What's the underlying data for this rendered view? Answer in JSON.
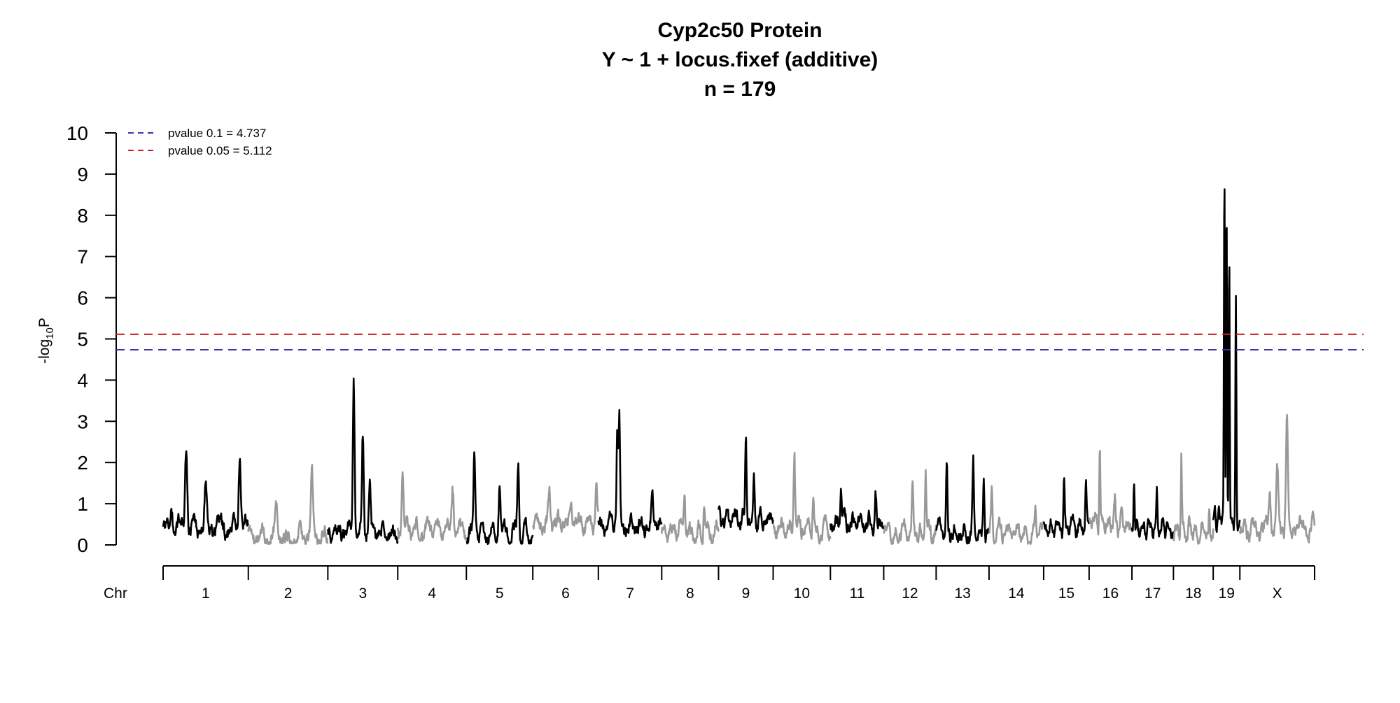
{
  "chart_data": {
    "type": "line",
    "title_lines": [
      "Cyp2c50 Protein",
      "Y ~ 1 + locus.fixef (additive)",
      "n = 179"
    ],
    "ylabel_base": "-log",
    "ylabel_sub": "10",
    "ylabel_tail": "P",
    "xlabel": "Chr",
    "ylim": [
      0,
      10
    ],
    "yticks": [
      "0",
      "1",
      "2",
      "3",
      "4",
      "5",
      "6",
      "7",
      "8",
      "9",
      "10"
    ],
    "thresholds": [
      {
        "label": "pvalue 0.1 = 4.737",
        "value": 4.737,
        "color": "#3333aa"
      },
      {
        "label": "pvalue 0.05 = 5.112",
        "value": 5.112,
        "color": "#cc2222"
      }
    ],
    "legend_position": "top-left",
    "colors": {
      "odd": "#000000",
      "even": "#999999"
    },
    "chromosomes": [
      {
        "label": "1",
        "size": 195,
        "peaks": [
          [
            0.27,
            2.3
          ],
          [
            0.5,
            1.6
          ],
          [
            0.9,
            2.1
          ],
          [
            0.1,
            0.8
          ]
        ],
        "base": 0.4
      },
      {
        "label": "2",
        "size": 182,
        "peaks": [
          [
            0.35,
            1.1
          ],
          [
            0.8,
            1.85
          ]
        ],
        "base": 0.2
      },
      {
        "label": "3",
        "size": 160,
        "peaks": [
          [
            0.37,
            3.95
          ],
          [
            0.5,
            2.75
          ],
          [
            0.6,
            1.5
          ]
        ],
        "base": 0.3
      },
      {
        "label": "4",
        "size": 157,
        "peaks": [
          [
            0.07,
            1.8
          ],
          [
            0.8,
            1.35
          ]
        ],
        "base": 0.35
      },
      {
        "label": "5",
        "size": 152,
        "peaks": [
          [
            0.12,
            2.25
          ],
          [
            0.5,
            1.45
          ],
          [
            0.78,
            2.0
          ]
        ],
        "base": 0.3
      },
      {
        "label": "6",
        "size": 150,
        "peaks": [
          [
            0.25,
            1.35
          ],
          [
            0.58,
            1.0
          ],
          [
            0.97,
            1.6
          ]
        ],
        "base": 0.5
      },
      {
        "label": "7",
        "size": 145,
        "peaks": [
          [
            0.33,
            3.2
          ],
          [
            0.3,
            2.8
          ],
          [
            0.85,
            1.4
          ]
        ],
        "base": 0.5
      },
      {
        "label": "8",
        "size": 130,
        "peaks": [
          [
            0.4,
            1.25
          ],
          [
            0.75,
            1.0
          ]
        ],
        "base": 0.3
      },
      {
        "label": "9",
        "size": 125,
        "peaks": [
          [
            0.5,
            2.65
          ],
          [
            0.65,
            1.65
          ]
        ],
        "base": 0.6
      },
      {
        "label": "10",
        "size": 131,
        "peaks": [
          [
            0.37,
            2.25
          ],
          [
            0.7,
            1.1
          ]
        ],
        "base": 0.4
      },
      {
        "label": "11",
        "size": 122,
        "peaks": [
          [
            0.2,
            1.3
          ],
          [
            0.85,
            1.3
          ]
        ],
        "base": 0.5
      },
      {
        "label": "12",
        "size": 120,
        "peaks": [
          [
            0.55,
            1.55
          ],
          [
            0.8,
            1.75
          ]
        ],
        "base": 0.3
      },
      {
        "label": "13",
        "size": 121,
        "peaks": [
          [
            0.2,
            2.0
          ],
          [
            0.7,
            2.1
          ],
          [
            0.9,
            1.65
          ]
        ],
        "base": 0.3
      },
      {
        "label": "14",
        "size": 125,
        "peaks": [
          [
            0.05,
            1.4
          ],
          [
            0.85,
            1.0
          ]
        ],
        "base": 0.3
      },
      {
        "label": "15",
        "size": 104,
        "peaks": [
          [
            0.45,
            1.7
          ],
          [
            0.93,
            1.6
          ]
        ],
        "base": 0.4
      },
      {
        "label": "16",
        "size": 98,
        "peaks": [
          [
            0.25,
            2.35
          ],
          [
            0.6,
            1.2
          ]
        ],
        "base": 0.5
      },
      {
        "label": "17",
        "size": 95,
        "peaks": [
          [
            0.05,
            1.6
          ],
          [
            0.6,
            1.3
          ]
        ],
        "base": 0.4
      },
      {
        "label": "18",
        "size": 91,
        "peaks": [
          [
            0.2,
            2.2
          ],
          [
            0.9,
            0.95
          ]
        ],
        "base": 0.3
      },
      {
        "label": "19",
        "size": 61,
        "peaks": [
          [
            0.42,
            9.25
          ],
          [
            0.5,
            8.4
          ],
          [
            0.6,
            7.2
          ],
          [
            0.85,
            6.2
          ]
        ],
        "base": 0.6
      },
      {
        "label": "X",
        "size": 171,
        "peaks": [
          [
            0.5,
            2.0
          ],
          [
            0.63,
            3.15
          ],
          [
            0.4,
            1.3
          ]
        ],
        "base": 0.4
      }
    ]
  }
}
